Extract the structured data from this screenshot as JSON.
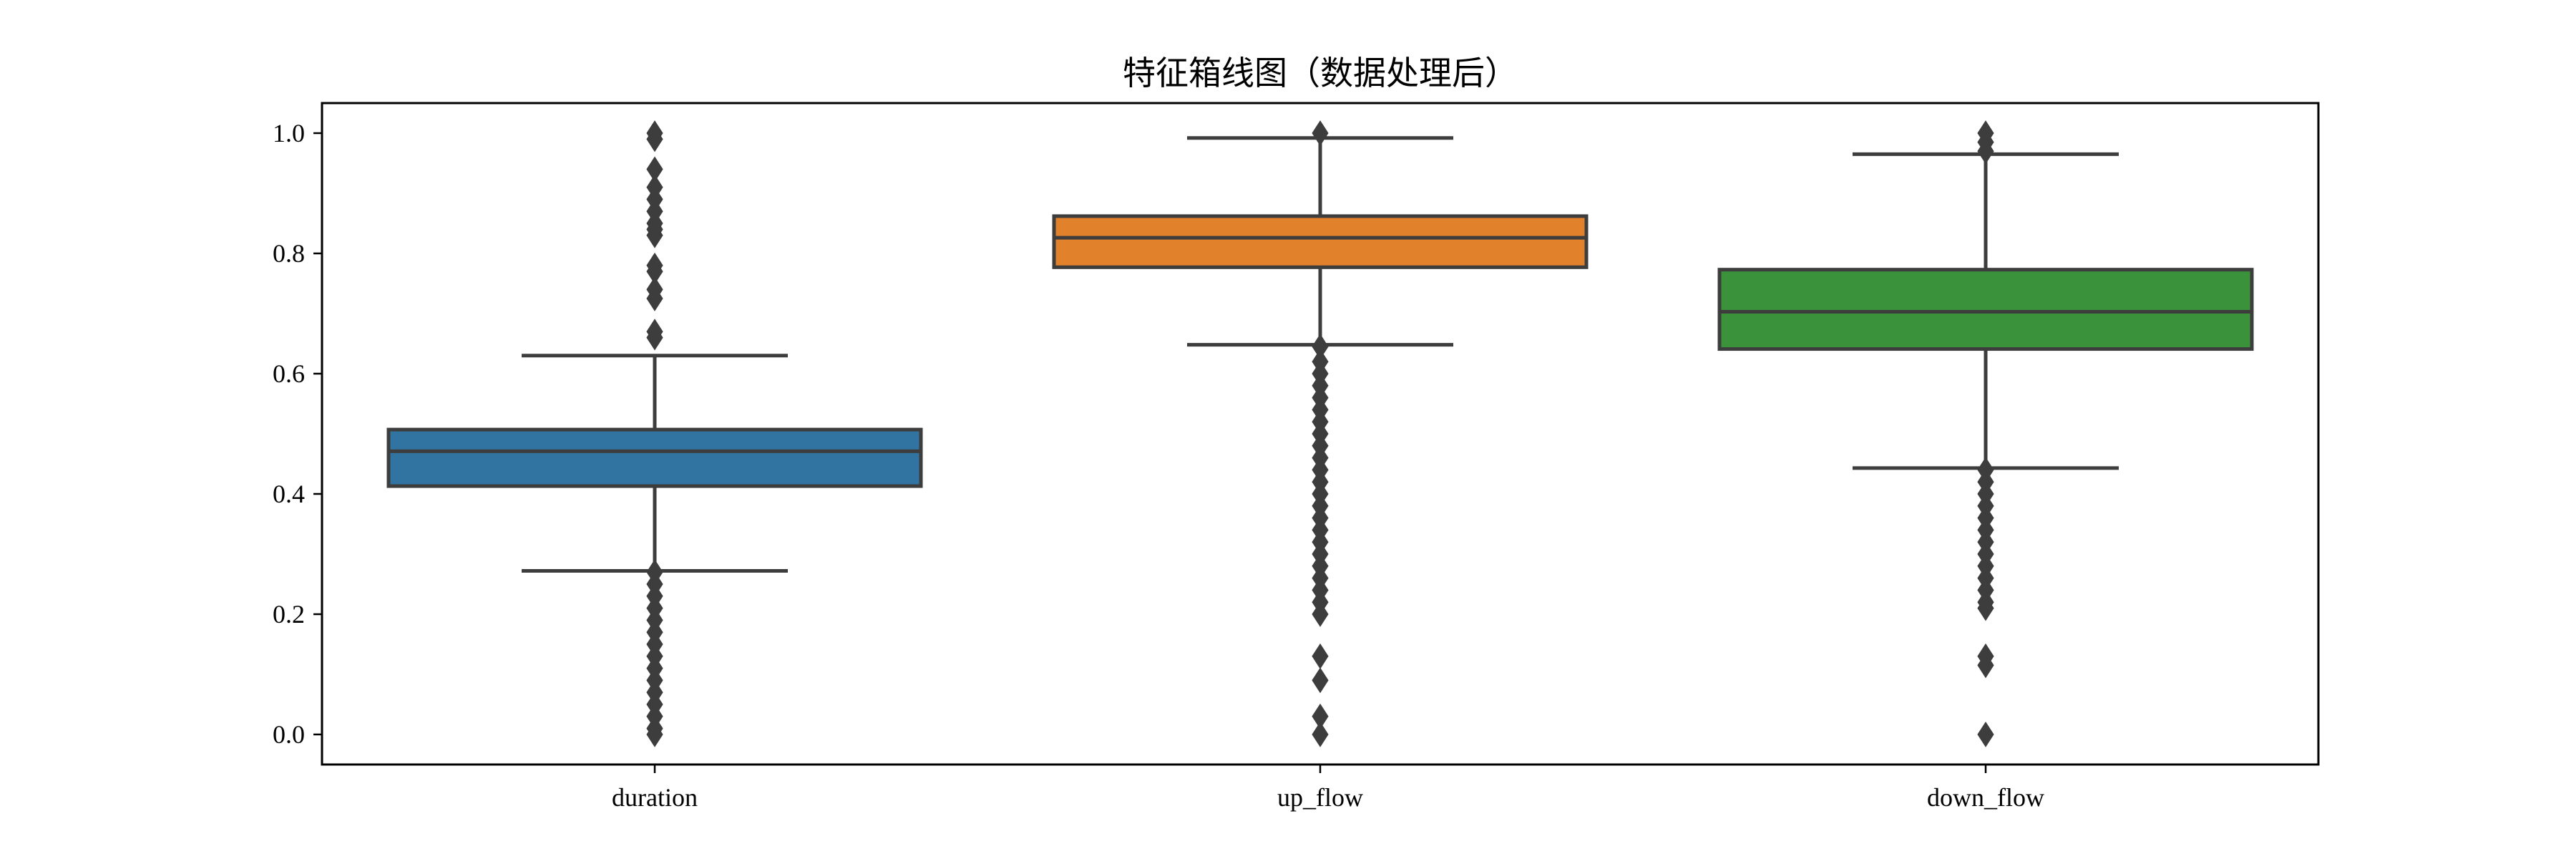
{
  "chart_data": {
    "type": "box",
    "title": "特征箱线图（数据处理后）",
    "xlabel": "",
    "ylabel": "",
    "ylim": [
      -0.05,
      1.05
    ],
    "yticks": [
      "0.0",
      "0.2",
      "0.4",
      "0.6",
      "0.8",
      "1.0"
    ],
    "ytick_values": [
      0.0,
      0.2,
      0.4,
      0.6,
      0.8,
      1.0
    ],
    "grid": false,
    "categories": [
      "duration",
      "up_flow",
      "down_flow"
    ],
    "boxes": [
      {
        "category": "duration",
        "color": "#3274a1",
        "whisker_low": 0.272,
        "q1": 0.413,
        "median": 0.471,
        "q3": 0.507,
        "whisker_high": 0.63,
        "outliers": [
          1.0,
          0.99,
          0.94,
          0.91,
          0.89,
          0.87,
          0.85,
          0.84,
          0.83,
          0.78,
          0.77,
          0.74,
          0.725,
          0.67,
          0.66,
          0.27,
          0.25,
          0.23,
          0.21,
          0.19,
          0.17,
          0.15,
          0.13,
          0.11,
          0.09,
          0.07,
          0.05,
          0.03,
          0.01,
          0.0
        ]
      },
      {
        "category": "up_flow",
        "color": "#e1812c",
        "whisker_low": 0.648,
        "q1": 0.777,
        "median": 0.826,
        "q3": 0.862,
        "whisker_high": 0.992,
        "outliers": [
          1.0,
          0.645,
          0.62,
          0.6,
          0.58,
          0.56,
          0.54,
          0.52,
          0.5,
          0.48,
          0.46,
          0.44,
          0.42,
          0.4,
          0.38,
          0.36,
          0.34,
          0.32,
          0.3,
          0.28,
          0.26,
          0.24,
          0.22,
          0.2,
          0.13,
          0.09,
          0.03,
          0.0
        ]
      },
      {
        "category": "down_flow",
        "color": "#3a923a",
        "whisker_low": 0.443,
        "q1": 0.641,
        "median": 0.703,
        "q3": 0.773,
        "whisker_high": 0.965,
        "outliers": [
          1.0,
          0.985,
          0.97,
          0.44,
          0.42,
          0.4,
          0.38,
          0.36,
          0.34,
          0.32,
          0.3,
          0.28,
          0.26,
          0.24,
          0.22,
          0.21,
          0.13,
          0.115,
          0.0
        ]
      }
    ]
  }
}
